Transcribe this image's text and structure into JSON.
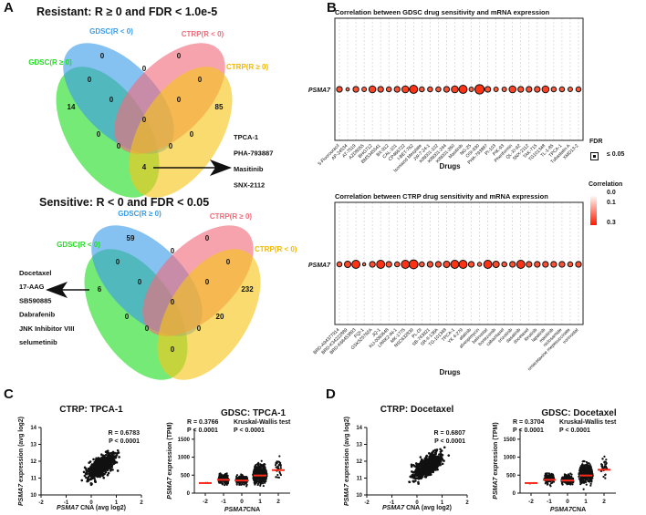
{
  "panels": {
    "A": "A",
    "B": "B",
    "C": "C",
    "D": "D"
  },
  "venn_resistant": {
    "title": "Resistant: R ≥ 0 and FDR < 1.0e-5",
    "sets": [
      {
        "label": "GDSC(R ≥ 0)",
        "color": "#22dd22"
      },
      {
        "label": "GDSC(R < 0)",
        "color": "#3a9be8"
      },
      {
        "label": "CTRP(R < 0)",
        "color": "#f26b7a"
      },
      {
        "label": "CTRP(R ≥ 0)",
        "color": "#f5c518"
      }
    ],
    "counts": [
      "0",
      "0",
      "0",
      "0",
      "0",
      "14",
      "0",
      "0",
      "85",
      "0",
      "0",
      "0",
      "0",
      "0",
      "4"
    ],
    "drugs": [
      "TPCA-1",
      "PHA-793887",
      "Masitinib",
      "SNX-2112"
    ]
  },
  "venn_sensitive": {
    "title": "Sensitive: R < 0 and FDR < 0.05",
    "sets": [
      {
        "label": "GDSC(R < 0)",
        "color": "#22dd22"
      },
      {
        "label": "GDSC(R ≥ 0)",
        "color": "#3a9be8"
      },
      {
        "label": "CTRP(R ≥ 0)",
        "color": "#f26b7a"
      },
      {
        "label": "CTRP(R < 0)",
        "color": "#f5c518"
      }
    ],
    "counts": [
      "59",
      "0",
      "0",
      "0",
      "0",
      "6",
      "0",
      "0",
      "232",
      "0",
      "0",
      "20",
      "0",
      "0",
      "0"
    ],
    "drugs": [
      "Docetaxel",
      "17-AAG",
      "SB590885",
      "Dabrafenib",
      "JNK Inhibitor VIII",
      "selumetinib"
    ]
  },
  "chart_data": [
    {
      "type": "scatter",
      "title": "Correlation between GDSC drug sensitivity and mRNA expression",
      "xlabel": "Drugs",
      "gene": "PSMA7",
      "drugs": [
        "5-Fluorouracil",
        "AP-24534",
        "AT-7519",
        "AZD8055",
        "BHG712",
        "BMS345541",
        "BX-912",
        "CAL-101",
        "CP466722",
        "I-BET-762",
        "Isoniazid Mesylate",
        "JW-7-24-1",
        "KIN001-102",
        "KIN001-244",
        "KIN001-260",
        "Masitinib",
        "NG-25",
        "OSI-930",
        "PHA-793887",
        "PI-103",
        "PIK-93",
        "Phenformin",
        "QL-XI-92",
        "SNX-2112",
        "TAK-715",
        "TG101348",
        "TL-1-85",
        "TPCA-1",
        "Tubastatin A",
        "XMD13-2"
      ],
      "correlation": [
        0.15,
        0.05,
        0.15,
        0.1,
        0.2,
        0.15,
        0.12,
        0.15,
        0.2,
        0.25,
        0.12,
        0.12,
        0.12,
        0.15,
        0.2,
        0.25,
        0.1,
        0.3,
        0.15,
        0.1,
        0.1,
        0.2,
        0.15,
        0.15,
        0.15,
        0.2,
        0.12,
        0.12,
        0.1,
        0.12
      ]
    },
    {
      "type": "scatter",
      "title": "Correlation between CTRP drug sensitivity and mRNA expression",
      "xlabel": "Drugs",
      "gene": "PSMA7",
      "drugs": [
        "BRD-A94377914",
        "BRD-K34222889",
        "BRD-K66453893",
        "FQI-1",
        "GSK525762A",
        "JQ-1",
        "KU-0060648",
        "LRRK2-IN-1",
        "MK-1775",
        "NSC632839",
        "PL-DI",
        "SB-743921",
        "SR-II-138A",
        "TG-101348",
        "TPCA-1",
        "YK 4-279",
        "afatinib",
        "alvespimycin",
        "belinostat",
        "bortezomib",
        "cabazitaxel",
        "crizotinib",
        "dasatinib",
        "docetaxel",
        "ibrutinib",
        "lapatinib",
        "masitinib",
        "niclosamide",
        "omacetaxine mepesuccinate",
        "vorinostat"
      ],
      "correlation": [
        0.12,
        0.18,
        0.25,
        0.04,
        0.15,
        0.25,
        0.15,
        0.12,
        0.25,
        0.28,
        0.12,
        0.15,
        0.15,
        0.18,
        0.25,
        0.25,
        0.15,
        0.08,
        0.25,
        0.18,
        0.12,
        0.15,
        0.25,
        0.15,
        0.15,
        0.15,
        0.15,
        0.15,
        0.12,
        0.15
      ]
    },
    {
      "type": "scatter",
      "title": "CTRP: TPCA-1",
      "xlabel_gene": "PSMA7",
      "xlabel": "CNA (avg log2)",
      "ylabel_gene": "PSMA7",
      "ylabel": "expression (avg log2)",
      "xlim": [
        -2,
        2
      ],
      "ylim": [
        10,
        14
      ],
      "xticks": [
        "-2",
        "-1",
        "0",
        "1",
        "2"
      ],
      "yticks": [
        "10",
        "11",
        "12",
        "13",
        "14"
      ],
      "stats": [
        "R = 0.6783",
        "P < 0.0001"
      ]
    },
    {
      "type": "scatter",
      "title": "GDSC: TPCA-1",
      "xlabel_gene": "PSMA7",
      "xlabel": "CNA",
      "ylabel_gene": "PSMA7",
      "ylabel": "expression (TPM)",
      "categories": [
        "-2",
        "-1",
        "0",
        "1",
        "2"
      ],
      "medians": [
        280,
        370,
        350,
        490,
        640
      ],
      "ylim": [
        0,
        1800
      ],
      "yticks": [
        "0",
        "500",
        "1000",
        "1500"
      ],
      "stats": [
        "R = 0.3766",
        "P < 0.0001"
      ],
      "test": [
        "Kruskal-Wallis test",
        "P < 0.0001"
      ]
    },
    {
      "type": "scatter",
      "title": "CTRP: Docetaxel",
      "xlabel_gene": "PSMA7",
      "xlabel": "CNA (avg log2)",
      "ylabel_gene": "PSMA7",
      "ylabel": "expression (avg log2)",
      "xlim": [
        -2,
        2
      ],
      "ylim": [
        10,
        14
      ],
      "xticks": [
        "-2",
        "-1",
        "0",
        "1",
        "2"
      ],
      "yticks": [
        "10",
        "11",
        "12",
        "13",
        "14"
      ],
      "stats": [
        "R = 0.6807",
        "P < 0.0001"
      ]
    },
    {
      "type": "scatter",
      "title": "GDSC: Docetaxel",
      "xlabel_gene": "PSMA7",
      "xlabel": "CNA",
      "ylabel_gene": "PSMA7",
      "ylabel": "expression (TPM)",
      "categories": [
        "-2",
        "-1",
        "0",
        "1",
        "2"
      ],
      "medians": [
        280,
        370,
        350,
        490,
        650
      ],
      "ylim": [
        0,
        1800
      ],
      "yticks": [
        "0",
        "500",
        "1000",
        "1500"
      ],
      "stats": [
        "R = 0.3704",
        "P < 0.0001"
      ],
      "test": [
        "Kruskal-Wallis test",
        "P < 0.0001"
      ]
    }
  ],
  "legend": {
    "fdr_title": "FDR",
    "fdr_label": "≤ 0.05",
    "corr_title": "Correlation",
    "corr_ticks": [
      "0.0",
      "0.1",
      "0.3"
    ],
    "color_low": "#ffffff",
    "color_high": "#ff1a00"
  }
}
